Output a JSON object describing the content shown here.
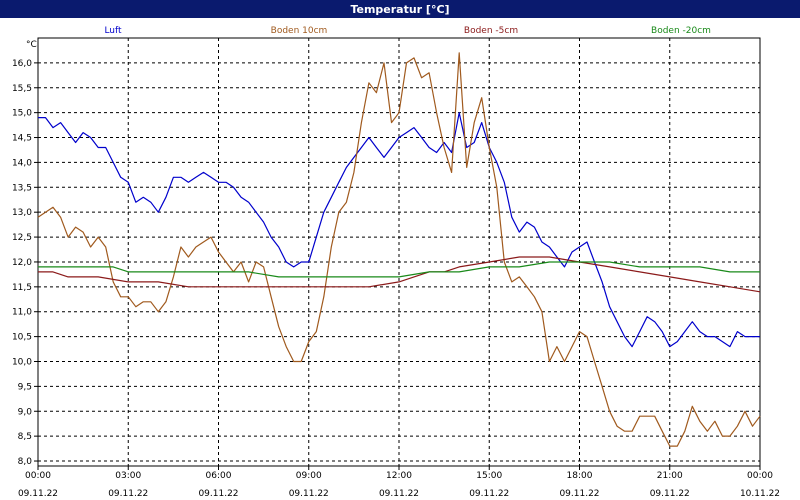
{
  "window": {
    "title": "Temperatur [°C]"
  },
  "chart_data": {
    "type": "line",
    "title": "Temperatur [°C]",
    "ylabel": "°C",
    "ylim": [
      7.9,
      16.5
    ],
    "xlim_hours": [
      0,
      24
    ],
    "grid": true,
    "legend_position": "top",
    "y_ticks": [
      {
        "value": 8.0,
        "label": "8,0"
      },
      {
        "value": 8.5,
        "label": "8,5"
      },
      {
        "value": 9.0,
        "label": "9,0"
      },
      {
        "value": 9.5,
        "label": "9,5"
      },
      {
        "value": 10.0,
        "label": "10,0"
      },
      {
        "value": 10.5,
        "label": "10,5"
      },
      {
        "value": 11.0,
        "label": "11,0"
      },
      {
        "value": 11.5,
        "label": "11,5"
      },
      {
        "value": 12.0,
        "label": "12,0"
      },
      {
        "value": 12.5,
        "label": "12,5"
      },
      {
        "value": 13.0,
        "label": "13,0"
      },
      {
        "value": 13.5,
        "label": "13,5"
      },
      {
        "value": 14.0,
        "label": "14,0"
      },
      {
        "value": 14.5,
        "label": "14,5"
      },
      {
        "value": 15.0,
        "label": "15,0"
      },
      {
        "value": 15.5,
        "label": "15,5"
      },
      {
        "value": 16.0,
        "label": "16,0"
      }
    ],
    "x_ticks": [
      {
        "value": 0,
        "time": "00:00",
        "date": "09.11.22"
      },
      {
        "value": 3,
        "time": "03:00",
        "date": "09.11.22"
      },
      {
        "value": 6,
        "time": "06:00",
        "date": "09.11.22"
      },
      {
        "value": 9,
        "time": "09:00",
        "date": "09.11.22"
      },
      {
        "value": 12,
        "time": "12:00",
        "date": "09.11.22"
      },
      {
        "value": 15,
        "time": "15:00",
        "date": "09.11.22"
      },
      {
        "value": 18,
        "time": "18:00",
        "date": "09.11.22"
      },
      {
        "value": 21,
        "time": "21:00",
        "date": "09.11.22"
      },
      {
        "value": 24,
        "time": "00:00",
        "date": "10.11.22"
      }
    ],
    "series": [
      {
        "name": "Luft",
        "color": "#0000cc",
        "x": [
          0,
          0.25,
          0.5,
          0.75,
          1,
          1.25,
          1.5,
          1.75,
          2,
          2.25,
          2.5,
          2.75,
          3,
          3.25,
          3.5,
          3.75,
          4,
          4.25,
          4.5,
          4.75,
          5,
          5.25,
          5.5,
          5.75,
          6,
          6.25,
          6.5,
          6.75,
          7,
          7.25,
          7.5,
          7.75,
          8,
          8.25,
          8.5,
          8.75,
          9,
          9.25,
          9.5,
          9.75,
          10,
          10.25,
          10.5,
          10.75,
          11,
          11.25,
          11.5,
          11.75,
          12,
          12.25,
          12.5,
          12.75,
          13,
          13.25,
          13.5,
          13.75,
          14,
          14.25,
          14.5,
          14.75,
          15,
          15.25,
          15.5,
          15.75,
          16,
          16.25,
          16.5,
          16.75,
          17,
          17.25,
          17.5,
          17.75,
          18,
          18.25,
          18.5,
          18.75,
          19,
          19.25,
          19.5,
          19.75,
          20,
          20.25,
          20.5,
          20.75,
          21,
          21.25,
          21.5,
          21.75,
          22,
          22.25,
          22.5,
          22.75,
          23,
          23.25,
          23.5,
          23.75,
          24
        ],
        "y": [
          14.9,
          14.9,
          14.7,
          14.8,
          14.6,
          14.4,
          14.6,
          14.5,
          14.3,
          14.3,
          14.0,
          13.7,
          13.6,
          13.2,
          13.3,
          13.2,
          13.0,
          13.3,
          13.7,
          13.7,
          13.6,
          13.7,
          13.8,
          13.7,
          13.6,
          13.6,
          13.5,
          13.3,
          13.2,
          13.0,
          12.8,
          12.5,
          12.3,
          12.0,
          11.9,
          12.0,
          12.0,
          12.5,
          13.0,
          13.3,
          13.6,
          13.9,
          14.1,
          14.3,
          14.5,
          14.3,
          14.1,
          14.3,
          14.5,
          14.6,
          14.7,
          14.5,
          14.3,
          14.2,
          14.4,
          14.2,
          15.0,
          14.3,
          14.4,
          14.8,
          14.3,
          14.0,
          13.6,
          12.9,
          12.6,
          12.8,
          12.7,
          12.4,
          12.3,
          12.1,
          11.9,
          12.2,
          12.3,
          12.4,
          12.0,
          11.6,
          11.1,
          10.8,
          10.5,
          10.3,
          10.6,
          10.9,
          10.8,
          10.6,
          10.3,
          10.4,
          10.6,
          10.8,
          10.6,
          10.5,
          10.5,
          10.4,
          10.3,
          10.6,
          10.5,
          10.5,
          10.5
        ]
      },
      {
        "name": "Boden 10cm",
        "color": "#a05a1e",
        "x": [
          0,
          0.25,
          0.5,
          0.75,
          1,
          1.25,
          1.5,
          1.75,
          2,
          2.25,
          2.5,
          2.75,
          3,
          3.25,
          3.5,
          3.75,
          4,
          4.25,
          4.5,
          4.75,
          5,
          5.25,
          5.5,
          5.75,
          6,
          6.25,
          6.5,
          6.75,
          7,
          7.25,
          7.5,
          7.75,
          8,
          8.25,
          8.5,
          8.75,
          9,
          9.25,
          9.5,
          9.75,
          10,
          10.25,
          10.5,
          10.75,
          11,
          11.25,
          11.5,
          11.75,
          12,
          12.25,
          12.5,
          12.75,
          13,
          13.25,
          13.5,
          13.75,
          14,
          14.25,
          14.5,
          14.75,
          15,
          15.25,
          15.5,
          15.75,
          16,
          16.25,
          16.5,
          16.75,
          17,
          17.25,
          17.5,
          17.75,
          18,
          18.25,
          18.5,
          18.75,
          19,
          19.25,
          19.5,
          19.75,
          20,
          20.25,
          20.5,
          20.75,
          21,
          21.25,
          21.5,
          21.75,
          22,
          22.25,
          22.5,
          22.75,
          23,
          23.25,
          23.5,
          23.75,
          24
        ],
        "y": [
          12.9,
          13.0,
          13.1,
          12.9,
          12.5,
          12.7,
          12.6,
          12.3,
          12.5,
          12.3,
          11.6,
          11.3,
          11.3,
          11.1,
          11.2,
          11.2,
          11.0,
          11.2,
          11.7,
          12.3,
          12.1,
          12.3,
          12.4,
          12.5,
          12.2,
          12.0,
          11.8,
          12.0,
          11.6,
          12.0,
          11.9,
          11.3,
          10.7,
          10.3,
          10.0,
          10.0,
          10.4,
          10.6,
          11.3,
          12.3,
          13.0,
          13.2,
          13.8,
          14.8,
          15.6,
          15.4,
          16.0,
          14.8,
          15.0,
          16.0,
          16.1,
          15.7,
          15.8,
          15.0,
          14.3,
          13.8,
          16.2,
          13.9,
          14.8,
          15.3,
          14.3,
          13.5,
          12.0,
          11.6,
          11.7,
          11.5,
          11.3,
          11.0,
          10.0,
          10.3,
          10.0,
          10.3,
          10.6,
          10.5,
          10.0,
          9.5,
          9.0,
          8.7,
          8.6,
          8.6,
          8.9,
          8.9,
          8.9,
          8.6,
          8.3,
          8.3,
          8.6,
          9.1,
          8.8,
          8.6,
          8.8,
          8.5,
          8.5,
          8.7,
          9.0,
          8.7,
          8.9
        ]
      },
      {
        "name": "Boden -5cm",
        "color": "#8b1a1a",
        "x": [
          0,
          0.5,
          1,
          2,
          3,
          3.5,
          4,
          5,
          6,
          7,
          8,
          9,
          10,
          11,
          12,
          12.5,
          13,
          13.5,
          14,
          15,
          16,
          17,
          18,
          19,
          20,
          21,
          22,
          23,
          24
        ],
        "y": [
          11.8,
          11.8,
          11.7,
          11.7,
          11.6,
          11.6,
          11.6,
          11.5,
          11.5,
          11.5,
          11.5,
          11.5,
          11.5,
          11.5,
          11.6,
          11.7,
          11.8,
          11.8,
          11.9,
          12.0,
          12.1,
          12.1,
          12.0,
          11.9,
          11.8,
          11.7,
          11.6,
          11.5,
          11.4
        ]
      },
      {
        "name": "Boden -20cm",
        "color": "#1a8a1a",
        "x": [
          0,
          1,
          2,
          2.5,
          3,
          4,
          5,
          6,
          7,
          8,
          9,
          10,
          11,
          12,
          13,
          14,
          15,
          16,
          17,
          18,
          19,
          20,
          21,
          22,
          23,
          24
        ],
        "y": [
          11.9,
          11.9,
          11.9,
          11.9,
          11.8,
          11.8,
          11.8,
          11.8,
          11.8,
          11.7,
          11.7,
          11.7,
          11.7,
          11.7,
          11.8,
          11.8,
          11.9,
          11.9,
          12.0,
          12.0,
          12.0,
          11.9,
          11.9,
          11.9,
          11.8,
          11.8
        ]
      }
    ]
  }
}
